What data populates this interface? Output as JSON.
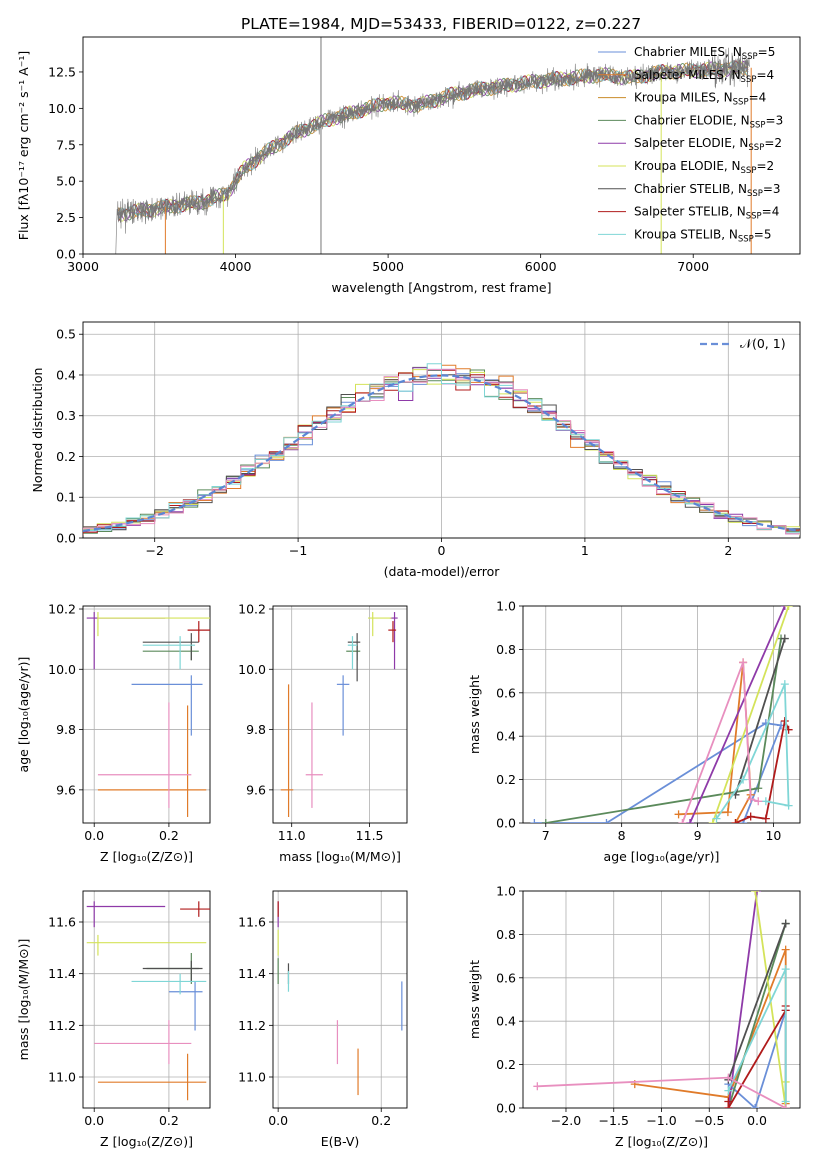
{
  "title": "PLATE=1984, MJD=53433, FIBERID=0122, z=0.227",
  "colors": {
    "c1": "#6a8fd8",
    "c2": "#e07b2a",
    "c3": "#5b8a5b",
    "c4": "#8e3aa8",
    "c5": "#d4e35a",
    "c6": "#505050",
    "c7": "#b01b1b",
    "c8": "#7fd6d6",
    "c9": "#e88fbf"
  },
  "chart_data": [
    {
      "type": "line",
      "id": "spectrum",
      "xlabel": "wavelength [Angstrom, rest frame]",
      "ylabel": "Flux [fλ10⁻¹⁷ erg cm⁻² s⁻¹ A⁻¹]",
      "xlim": [
        3000,
        7700
      ],
      "ylim": [
        0,
        14.9
      ],
      "xticks": [
        3000,
        4000,
        5000,
        6000,
        7000
      ],
      "yticks": [
        0.0,
        2.5,
        5.0,
        7.5,
        10.0,
        12.5
      ],
      "ytick_labels": [
        "0.0",
        "2.5",
        "5.0",
        "7.5",
        "10.0",
        "12.5"
      ],
      "continuum_x": [
        3220,
        3400,
        3600,
        3800,
        3950,
        4050,
        4200,
        4400,
        4600,
        4800,
        5000,
        5200,
        5400,
        5600,
        5800,
        6000,
        6200,
        6400,
        6600,
        6800,
        7000,
        7200,
        7400
      ],
      "continuum_y": [
        2.7,
        3.0,
        3.3,
        3.6,
        4.2,
        5.8,
        7.0,
        8.3,
        9.2,
        9.8,
        10.4,
        10.2,
        10.9,
        11.3,
        11.6,
        11.9,
        12.1,
        12.3,
        12.1,
        12.5,
        12.6,
        12.7,
        12.8
      ],
      "legend": [
        {
          "label": "Chabrier MILES, N",
          "sub": "SSP",
          "suffix": "=5",
          "color": "#6a8fd8"
        },
        {
          "label": "Salpeter MILES, N",
          "sub": "SSP",
          "suffix": "=4",
          "color": "#e07b2a"
        },
        {
          "label": "Kroupa MILES, N",
          "sub": "SSP",
          "suffix": "=4",
          "color": "#c98b2a"
        },
        {
          "label": "Chabrier ELODIE, N",
          "sub": "SSP",
          "suffix": "=3",
          "color": "#5b8a5b"
        },
        {
          "label": "Salpeter ELODIE, N",
          "sub": "SSP",
          "suffix": "=2",
          "color": "#8e3aa8"
        },
        {
          "label": "Kroupa ELODIE, N",
          "sub": "SSP",
          "suffix": "=2",
          "color": "#d4e35a"
        },
        {
          "label": "Chabrier STELIB, N",
          "sub": "SSP",
          "suffix": "=3",
          "color": "#505050"
        },
        {
          "label": "Salpeter STELIB, N",
          "sub": "SSP",
          "suffix": "=4",
          "color": "#b01b1b"
        },
        {
          "label": "Kroupa STELIB, N",
          "sub": "SSP",
          "suffix": "=5",
          "color": "#7fd6d6"
        }
      ]
    },
    {
      "type": "histogram",
      "id": "residuals",
      "xlabel": "(data-model)/error",
      "ylabel": "Normed distribution",
      "xlim": [
        -2.5,
        2.5
      ],
      "ylim": [
        0,
        0.53
      ],
      "xticks": [
        -2,
        -1,
        0,
        1,
        2
      ],
      "xtick_labels": [
        "−2",
        "−1",
        "0",
        "1",
        "2"
      ],
      "yticks": [
        0.0,
        0.1,
        0.2,
        0.3,
        0.4,
        0.5
      ],
      "ytick_labels": [
        "0.0",
        "0.1",
        "0.2",
        "0.3",
        "0.4",
        "0.5"
      ],
      "bin_width": 0.1,
      "legend": [
        {
          "label": "𝒩(0, 1)",
          "color": "#6a8fd8",
          "style": "dashed"
        }
      ]
    },
    {
      "type": "scatter",
      "id": "age_vs_Z",
      "xlabel": "Z [log₁₀(Z/Z⊙)]",
      "ylabel": "age  [log₁₀(age/yr)]",
      "xlim": [
        -0.03,
        0.31
      ],
      "ylim": [
        9.49,
        10.21
      ],
      "xticks": [
        0.0,
        0.2
      ],
      "xtick_labels": [
        "0.0",
        "0.2"
      ],
      "yticks": [
        9.6,
        9.8,
        10.0,
        10.2
      ],
      "ytick_labels": [
        "9.6",
        "9.8",
        "10.0",
        "10.2"
      ],
      "points": [
        {
          "x": 0.26,
          "y": 9.95,
          "xerr": [
            0.16,
            0.03
          ],
          "yerr": [
            0.17,
            0.03
          ],
          "color": "#6a8fd8"
        },
        {
          "x": 0.25,
          "y": 9.6,
          "xerr": [
            0.24,
            0.05
          ],
          "yerr": [
            0.09,
            0.28
          ],
          "color": "#e07b2a"
        },
        {
          "x": 0.26,
          "y": 10.06,
          "xerr": [
            0.13,
            0.02
          ],
          "yerr": [
            0.03,
            0.02
          ],
          "color": "#5b8a5b"
        },
        {
          "x": 0.0,
          "y": 10.17,
          "xerr": [
            0.02,
            0.19
          ],
          "yerr": [
            0.17,
            0.02
          ],
          "color": "#8e3aa8"
        },
        {
          "x": 0.01,
          "y": 10.17,
          "xerr": [
            0.0,
            0.3
          ],
          "yerr": [
            0.06,
            0.02
          ],
          "color": "#d4e35a"
        },
        {
          "x": 0.26,
          "y": 10.09,
          "xerr": [
            0.13,
            0.02
          ],
          "yerr": [
            0.06,
            0.03
          ],
          "color": "#505050"
        },
        {
          "x": 0.28,
          "y": 10.13,
          "xerr": [
            0.03,
            0.03
          ],
          "yerr": [
            0.04,
            0.03
          ],
          "color": "#b01b1b"
        },
        {
          "x": 0.23,
          "y": 10.08,
          "xerr": [
            0.1,
            0.04
          ],
          "yerr": [
            0.08,
            0.03
          ],
          "color": "#7fd6d6"
        },
        {
          "x": 0.2,
          "y": 9.65,
          "xerr": [
            0.19,
            0.06
          ],
          "yerr": [
            0.11,
            0.24
          ],
          "color": "#e88fbf"
        }
      ]
    },
    {
      "type": "scatter",
      "id": "age_vs_mass",
      "xlabel": "mass [log₁₀(M/M⊙)]",
      "ylabel": "",
      "xlim": [
        10.88,
        11.74
      ],
      "ylim": [
        9.49,
        10.21
      ],
      "xticks": [
        11.0,
        11.5
      ],
      "xtick_labels": [
        "11.0",
        "11.5"
      ],
      "yticks": [
        9.6,
        9.8,
        10.0,
        10.2
      ],
      "ytick_labels": [
        "9.6",
        "9.8",
        "10.0",
        "10.2"
      ],
      "points": [
        {
          "x": 11.33,
          "y": 9.95,
          "xerr": [
            0.04,
            0.04
          ],
          "yerr": [
            0.17,
            0.03
          ],
          "color": "#6a8fd8"
        },
        {
          "x": 10.98,
          "y": 9.6,
          "xerr": [
            0.05,
            0.03
          ],
          "yerr": [
            0.09,
            0.35
          ],
          "color": "#e07b2a"
        },
        {
          "x": 11.42,
          "y": 10.06,
          "xerr": [
            0.07,
            0.02
          ],
          "yerr": [
            0.03,
            0.02
          ],
          "color": "#5b8a5b"
        },
        {
          "x": 11.66,
          "y": 10.17,
          "xerr": [
            0.03,
            0.02
          ],
          "yerr": [
            0.17,
            0.02
          ],
          "color": "#8e3aa8"
        },
        {
          "x": 11.52,
          "y": 10.17,
          "xerr": [
            0.03,
            0.12
          ],
          "yerr": [
            0.06,
            0.02
          ],
          "color": "#d4e35a"
        },
        {
          "x": 11.42,
          "y": 10.09,
          "xerr": [
            0.06,
            0.02
          ],
          "yerr": [
            0.13,
            0.03
          ],
          "color": "#505050"
        },
        {
          "x": 11.65,
          "y": 10.13,
          "xerr": [
            0.03,
            0.02
          ],
          "yerr": [
            0.04,
            0.03
          ],
          "color": "#b01b1b"
        },
        {
          "x": 11.39,
          "y": 10.08,
          "xerr": [
            0.03,
            0.03
          ],
          "yerr": [
            0.08,
            0.03
          ],
          "color": "#7fd6d6"
        },
        {
          "x": 11.13,
          "y": 9.65,
          "xerr": [
            0.04,
            0.07
          ],
          "yerr": [
            0.11,
            0.24
          ],
          "color": "#e88fbf"
        }
      ]
    },
    {
      "type": "line",
      "id": "weight_vs_age",
      "xlabel": "age  [log₁₀(age/yr)]",
      "ylabel": "mass weight",
      "xlim": [
        6.7,
        10.35
      ],
      "ylim": [
        0,
        1
      ],
      "xticks": [
        7,
        8,
        9,
        10
      ],
      "xtick_labels": [
        "7",
        "8",
        "9",
        "10"
      ],
      "yticks": [
        0.0,
        0.2,
        0.4,
        0.6,
        0.8,
        1.0
      ],
      "ytick_labels": [
        "0.0",
        "0.2",
        "0.4",
        "0.6",
        "0.8",
        "1.0"
      ],
      "series": [
        {
          "color": "#6a8fd8",
          "x": [
            6.85,
            7.8,
            9.9,
            10.1,
            9.6
          ],
          "y": [
            0.0,
            0.0,
            0.46,
            0.45,
            0.0
          ]
        },
        {
          "color": "#e07b2a",
          "x": [
            8.75,
            9.4,
            9.6,
            9.7,
            9.5
          ],
          "y": [
            0.04,
            0.05,
            0.74,
            0.13,
            0.0
          ]
        },
        {
          "color": "#5b8a5b",
          "x": [
            7.0,
            9.8,
            10.1
          ],
          "y": [
            0.0,
            0.16,
            0.85
          ]
        },
        {
          "color": "#8e3aa8",
          "x": [
            8.9,
            10.15
          ],
          "y": [
            0.0,
            1.0
          ]
        },
        {
          "color": "#d4e35a",
          "x": [
            9.2,
            10.2
          ],
          "y": [
            0.0,
            1.0
          ]
        },
        {
          "color": "#505050",
          "x": [
            9.5,
            10.15
          ],
          "y": [
            0.13,
            0.85
          ]
        },
        {
          "color": "#b01b1b",
          "x": [
            9.5,
            9.7,
            9.9,
            10.15,
            10.2
          ],
          "y": [
            0.0,
            0.03,
            0.02,
            0.47,
            0.43
          ]
        },
        {
          "color": "#7fd6d6",
          "x": [
            9.25,
            9.6,
            10.15,
            10.2,
            9.9
          ],
          "y": [
            0.02,
            0.2,
            0.64,
            0.08,
            0.1
          ]
        },
        {
          "color": "#e88fbf",
          "x": [
            8.8,
            9.6,
            9.7,
            9.8
          ],
          "y": [
            0.0,
            0.74,
            0.11,
            0.1
          ]
        }
      ]
    },
    {
      "type": "scatter",
      "id": "mass_vs_Z",
      "xlabel": "Z [log₁₀(Z/Z⊙)]",
      "ylabel": "mass [log₁₀(M/M⊙)]",
      "xlim": [
        -0.03,
        0.31
      ],
      "ylim": [
        10.88,
        11.72
      ],
      "xticks": [
        0.0,
        0.2
      ],
      "xtick_labels": [
        "0.0",
        "0.2"
      ],
      "yticks": [
        11.0,
        11.2,
        11.4,
        11.6
      ],
      "ytick_labels": [
        "11.0",
        "11.2",
        "11.4",
        "11.6"
      ],
      "points": [
        {
          "x": 0.27,
          "y": 11.33,
          "xerr": [
            0.07,
            0.02
          ],
          "yerr": [
            0.15,
            0.04
          ],
          "color": "#6a8fd8"
        },
        {
          "x": 0.25,
          "y": 10.98,
          "xerr": [
            0.24,
            0.05
          ],
          "yerr": [
            0.07,
            0.11
          ],
          "color": "#e07b2a"
        },
        {
          "x": 0.26,
          "y": 11.42,
          "xerr": [
            0.12,
            0.02
          ],
          "yerr": [
            0.06,
            0.06
          ],
          "color": "#5b8a5b"
        },
        {
          "x": 0.0,
          "y": 11.66,
          "xerr": [
            0.02,
            0.19
          ],
          "yerr": [
            0.08,
            0.02
          ],
          "color": "#8e3aa8"
        },
        {
          "x": 0.01,
          "y": 11.52,
          "xerr": [
            0.03,
            0.29
          ],
          "yerr": [
            0.05,
            0.03
          ],
          "color": "#d4e35a"
        },
        {
          "x": 0.26,
          "y": 11.42,
          "xerr": [
            0.13,
            0.03
          ],
          "yerr": [
            0.05,
            0.03
          ],
          "color": "#505050"
        },
        {
          "x": 0.28,
          "y": 11.65,
          "xerr": [
            0.05,
            0.03
          ],
          "yerr": [
            0.03,
            0.03
          ],
          "color": "#b01b1b"
        },
        {
          "x": 0.23,
          "y": 11.37,
          "xerr": [
            0.13,
            0.07
          ],
          "yerr": [
            0.05,
            0.03
          ],
          "color": "#7fd6d6"
        },
        {
          "x": 0.2,
          "y": 11.13,
          "xerr": [
            0.2,
            0.06
          ],
          "yerr": [
            0.08,
            0.09
          ],
          "color": "#e88fbf"
        }
      ]
    },
    {
      "type": "scatter",
      "id": "mass_vs_ebv",
      "xlabel": "E(B-V)",
      "ylabel": "",
      "xlim": [
        -0.01,
        0.25
      ],
      "ylim": [
        10.88,
        11.72
      ],
      "xticks": [
        0.0,
        0.2
      ],
      "xtick_labels": [
        "0.0",
        "0.2"
      ],
      "yticks": [
        11.0,
        11.2,
        11.4,
        11.6
      ],
      "ytick_labels": [
        "11.0",
        "11.2",
        "11.4",
        "11.6"
      ],
      "points": [
        {
          "x": 0.24,
          "y": 11.27,
          "err": [
            0.09,
            0.1
          ],
          "color": "#6a8fd8"
        },
        {
          "x": 0.155,
          "y": 10.98,
          "err": [
            0.05,
            0.13
          ],
          "color": "#e07b2a"
        },
        {
          "x": 0.0,
          "y": 11.42,
          "err": [
            0.06,
            0.04
          ],
          "color": "#5b8a5b"
        },
        {
          "x": 0.0,
          "y": 11.62,
          "err": [
            0.04,
            0.06
          ],
          "color": "#8e3aa8"
        },
        {
          "x": 0.0,
          "y": 11.52,
          "err": [
            0.05,
            0.05
          ],
          "color": "#d4e35a"
        },
        {
          "x": 0.02,
          "y": 11.4,
          "err": [
            0.04,
            0.04
          ],
          "color": "#505050"
        },
        {
          "x": 0.0,
          "y": 11.64,
          "err": [
            0.02,
            0.04
          ],
          "color": "#b01b1b"
        },
        {
          "x": 0.02,
          "y": 11.37,
          "err": [
            0.04,
            0.04
          ],
          "color": "#7fd6d6"
        },
        {
          "x": 0.115,
          "y": 11.12,
          "err": [
            0.07,
            0.1
          ],
          "color": "#e88fbf"
        }
      ]
    },
    {
      "type": "line",
      "id": "weight_vs_Z",
      "xlabel": "Z [log₁₀(Z/Z⊙)]",
      "ylabel": "mass weight",
      "xlim": [
        -2.45,
        0.45
      ],
      "ylim": [
        0,
        1
      ],
      "xticks": [
        -2.0,
        -1.5,
        -1.0,
        -0.5,
        0.0
      ],
      "xtick_labels": [
        "−2.0",
        "−1.5",
        "−1.0",
        "−0.5",
        "0.0"
      ],
      "yticks": [
        0.0,
        0.2,
        0.4,
        0.6,
        0.8,
        1.0
      ],
      "ytick_labels": [
        "0.0",
        "0.2",
        "0.4",
        "0.6",
        "0.8",
        "1.0"
      ],
      "series": [
        {
          "color": "#e07b2a",
          "x": [
            -1.28,
            -0.3,
            0.3,
            0.3
          ],
          "y": [
            0.11,
            0.05,
            0.73,
            0.02
          ]
        },
        {
          "color": "#6a8fd8",
          "x": [
            -0.3,
            -0.02,
            0.3,
            0.3
          ],
          "y": [
            0.11,
            0.0,
            0.45,
            0.0
          ]
        },
        {
          "color": "#5b8a5b",
          "x": [
            -0.3,
            0.3
          ],
          "y": [
            0.0,
            0.85
          ]
        },
        {
          "color": "#8e3aa8",
          "x": [
            -0.3,
            0.0
          ],
          "y": [
            0.0,
            1.0
          ]
        },
        {
          "color": "#d4e35a",
          "x": [
            -0.02,
            0.3,
            0.3
          ],
          "y": [
            1.0,
            0.0,
            0.12
          ]
        },
        {
          "color": "#505050",
          "x": [
            -0.3,
            0.3
          ],
          "y": [
            0.13,
            0.85
          ]
        },
        {
          "color": "#b01b1b",
          "x": [
            -0.3,
            -0.3,
            0.3,
            0.3
          ],
          "y": [
            0.03,
            0.0,
            0.45,
            0.47
          ]
        },
        {
          "color": "#7fd6d6",
          "x": [
            -0.3,
            0.3,
            0.3
          ],
          "y": [
            0.08,
            0.64,
            0.03
          ]
        },
        {
          "color": "#e88fbf",
          "x": [
            -2.3,
            -0.3,
            0.3
          ],
          "y": [
            0.1,
            0.14,
            0.0
          ]
        }
      ]
    }
  ]
}
